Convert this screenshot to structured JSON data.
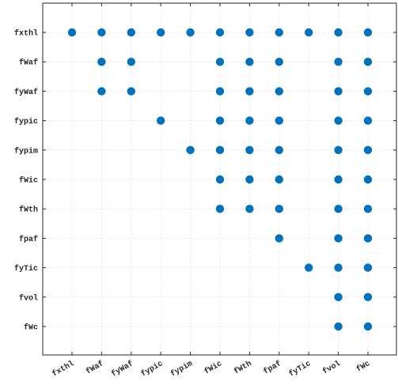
{
  "chart_data": {
    "type": "scatter",
    "title": "",
    "xlabel": "",
    "ylabel": "",
    "grid": true,
    "legend": "none",
    "marker_color": "#0072BD",
    "x_categories": [
      "fxthl",
      "fWaf",
      "fyWaf",
      "fypic",
      "fypim",
      "fWic",
      "fWth",
      "fpaf",
      "fyTic",
      "fvol",
      "fWc"
    ],
    "y_categories": [
      "fxthl",
      "fWaf",
      "fyWaf",
      "fypic",
      "fypim",
      "fWic",
      "fWth",
      "fpaf",
      "fyTic",
      "fvol",
      "fWc"
    ],
    "points": [
      {
        "y": "fxthl",
        "x": [
          "fxthl",
          "fWaf",
          "fyWaf",
          "fypic",
          "fypim",
          "fWic",
          "fWth",
          "fpaf",
          "fyTic",
          "fvol",
          "fWc"
        ]
      },
      {
        "y": "fWaf",
        "x": [
          "fWaf",
          "fyWaf",
          "fWic",
          "fWth",
          "fpaf",
          "fvol",
          "fWc"
        ]
      },
      {
        "y": "fyWaf",
        "x": [
          "fWaf",
          "fyWaf",
          "fWic",
          "fWth",
          "fpaf",
          "fvol",
          "fWc"
        ]
      },
      {
        "y": "fypic",
        "x": [
          "fypic",
          "fWic",
          "fWth",
          "fpaf",
          "fvol",
          "fWc"
        ]
      },
      {
        "y": "fypim",
        "x": [
          "fypim",
          "fWic",
          "fWth",
          "fpaf",
          "fvol",
          "fWc"
        ]
      },
      {
        "y": "fWic",
        "x": [
          "fWic",
          "fWth",
          "fpaf",
          "fvol",
          "fWc"
        ]
      },
      {
        "y": "fWth",
        "x": [
          "fWic",
          "fWth",
          "fpaf",
          "fvol",
          "fWc"
        ]
      },
      {
        "y": "fpaf",
        "x": [
          "fpaf",
          "fvol",
          "fWc"
        ]
      },
      {
        "y": "fyTic",
        "x": [
          "fyTic",
          "fvol",
          "fWc"
        ]
      },
      {
        "y": "fvol",
        "x": [
          "fvol",
          "fWc"
        ]
      },
      {
        "y": "fWc",
        "x": [
          "fvol",
          "fWc"
        ]
      }
    ]
  }
}
